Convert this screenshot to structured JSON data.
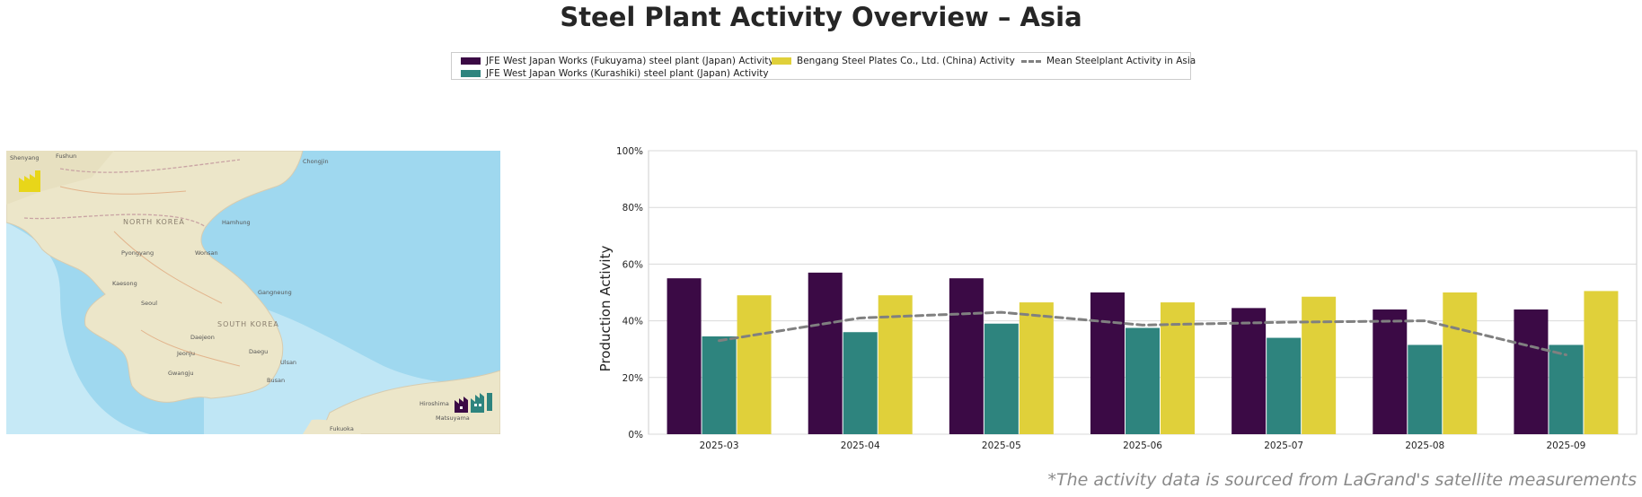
{
  "title": "Steel Plant Activity Overview – Asia",
  "footnote": "*The activity data is sourced from LaGrand's satellite measurements",
  "legend": {
    "items": [
      {
        "label": "JFE West Japan Works (Fukuyama) steel plant (Japan) Activity",
        "color": "#3b0a45",
        "kind": "bar"
      },
      {
        "label": "JFE West Japan Works (Kurashiki) steel plant (Japan) Activity",
        "color": "#2e847e",
        "kind": "bar"
      },
      {
        "label": "Bengang Steel Plates Co., Ltd. (China) Activity",
        "color": "#e0d03a",
        "kind": "bar"
      },
      {
        "label": "Mean Steelplant Activity in Asia",
        "color": "#808080",
        "kind": "dashed-line"
      }
    ]
  },
  "map": {
    "labels": [
      "NORTH KOREA",
      "SOUTH KOREA",
      "Pyongyang",
      "Seoul",
      "Daegu",
      "Busan",
      "Hamhung",
      "Chongjin",
      "Wonsan",
      "Gwangju",
      "Fukuoka",
      "Hiroshima",
      "Matsuyama",
      "Shenyang",
      "Fushun",
      "Kaesong",
      "Daejeon",
      "Ulsan",
      "Jeonju",
      "Gangneung"
    ],
    "colors": {
      "land": "#ece6c9",
      "sea": "#9fd8ef",
      "shallow": "#c6e9f6"
    }
  },
  "chart_data": {
    "type": "bar",
    "categories": [
      "2025-03",
      "2025-04",
      "2025-05",
      "2025-06",
      "2025-07",
      "2025-08",
      "2025-09"
    ],
    "series": [
      {
        "name": "JFE West Japan Works (Fukuyama) steel plant (Japan) Activity",
        "values": [
          55,
          57,
          55,
          50,
          44.5,
          44,
          44
        ]
      },
      {
        "name": "JFE West Japan Works (Kurashiki) steel plant (Japan) Activity",
        "values": [
          34.5,
          36,
          39,
          37.5,
          34,
          31.5,
          31.5
        ]
      },
      {
        "name": "Bengang Steel Plates Co., Ltd. (China) Activity",
        "values": [
          49,
          49,
          46.5,
          46.5,
          48.5,
          50,
          50.5
        ]
      }
    ],
    "line": {
      "name": "Mean Steelplant Activity in Asia",
      "values": [
        33,
        41,
        43,
        38.5,
        39.5,
        40,
        28
      ]
    },
    "ylabel": "Production Activity",
    "xlabel": "",
    "ylim": [
      0,
      100
    ],
    "yticks": [
      "0%",
      "20%",
      "40%",
      "60%",
      "80%",
      "100%"
    ],
    "grid": true,
    "legend_position": "top-center"
  }
}
